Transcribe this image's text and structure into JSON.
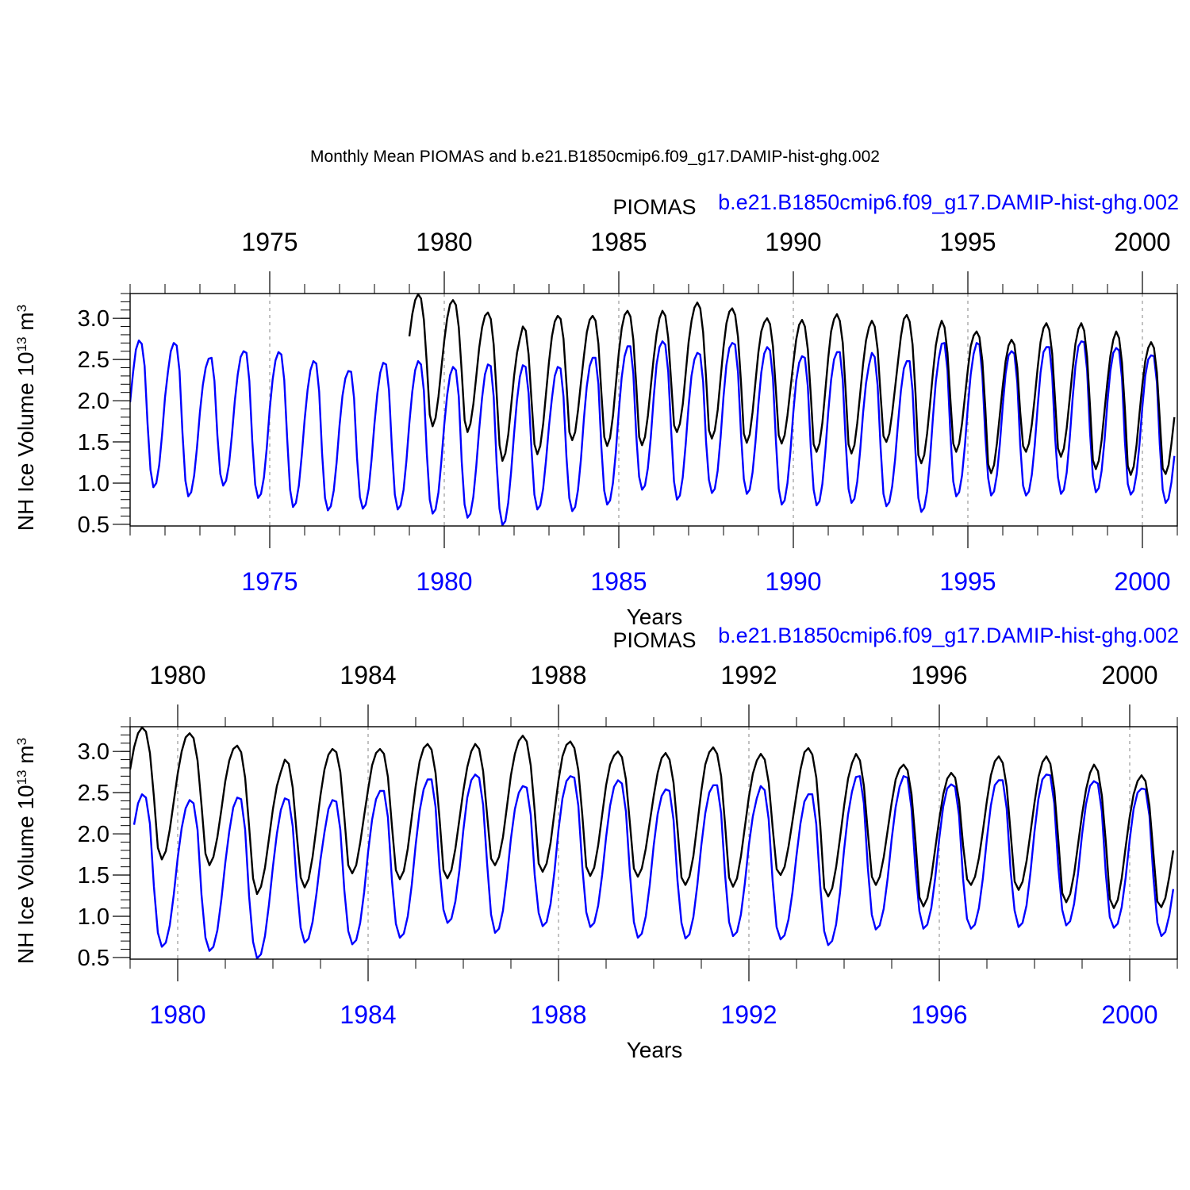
{
  "figure": {
    "title": "Monthly Mean PIOMAS and b.e21.B1850cmip6.f09_g17.DAMIP-hist-ghg.002"
  },
  "colors": {
    "piomas": "#000000",
    "model": "#0000ff",
    "frame": "#000000",
    "gridline": "#9a9a9a"
  },
  "chart_data": [
    {
      "type": "line",
      "ylabel": "NH Ice Volume 10",
      "ylabel_exponent": "13",
      "ylabel_unit": " m",
      "ylabel_unit_exponent": "3",
      "xlabel": "Years",
      "xlim": [
        1971.0,
        2001.0
      ],
      "ylim": [
        0.48,
        3.3
      ],
      "major_ticks": [
        1975,
        1980,
        1985,
        1990,
        1995,
        2000
      ],
      "major_tick_labels": [
        "1975",
        "1980",
        "1985",
        "1990",
        "1995",
        "2000"
      ],
      "yticks": [
        0.5,
        1.0,
        1.5,
        2.0,
        2.5,
        3.0
      ],
      "ytick_labels": [
        "0.5",
        "1.0",
        "1.5",
        "2.0",
        "2.5",
        "3.0"
      ],
      "grid": "vertical dashed at major ticks",
      "legend": {
        "left_label": "PIOMAS",
        "right_label": "b.e21.B1850cmip6.f09_g17.DAMIP-hist-ghg.002"
      },
      "series": [
        {
          "name": "PIOMAS",
          "x_start": 1979.0,
          "step": 0.08333,
          "values": [
            2.78,
            3.05,
            3.22,
            3.29,
            3.24,
            2.98,
            2.45,
            1.83,
            1.69,
            1.79,
            2.05,
            2.39,
            2.73,
            3.0,
            3.17,
            3.22,
            3.16,
            2.89,
            2.35,
            1.76,
            1.62,
            1.72,
            1.96,
            2.29,
            2.64,
            2.89,
            3.03,
            3.07,
            2.99,
            2.68,
            2.09,
            1.46,
            1.27,
            1.36,
            1.59,
            1.94,
            2.3,
            2.58,
            2.75,
            2.9,
            2.85,
            2.56,
            2.0,
            1.47,
            1.35,
            1.45,
            1.72,
            2.09,
            2.47,
            2.78,
            2.96,
            3.03,
            2.99,
            2.75,
            2.21,
            1.62,
            1.52,
            1.62,
            1.89,
            2.22,
            2.54,
            2.83,
            2.98,
            3.03,
            2.97,
            2.69,
            2.1,
            1.56,
            1.45,
            1.55,
            1.82,
            2.2,
            2.58,
            2.88,
            3.04,
            3.09,
            3.02,
            2.74,
            2.19,
            1.56,
            1.46,
            1.56,
            1.82,
            2.17,
            2.52,
            2.81,
            3.0,
            3.09,
            3.03,
            2.76,
            2.23,
            1.7,
            1.62,
            1.72,
            1.96,
            2.33,
            2.71,
            2.97,
            3.13,
            3.19,
            3.12,
            2.83,
            2.28,
            1.64,
            1.54,
            1.64,
            1.89,
            2.27,
            2.65,
            2.94,
            3.08,
            3.12,
            3.04,
            2.77,
            2.23,
            1.6,
            1.49,
            1.59,
            1.86,
            2.23,
            2.59,
            2.84,
            2.95,
            3.0,
            2.93,
            2.66,
            2.13,
            1.58,
            1.48,
            1.58,
            1.82,
            2.14,
            2.46,
            2.74,
            2.92,
            2.98,
            2.9,
            2.62,
            2.07,
            1.47,
            1.38,
            1.48,
            1.73,
            2.12,
            2.52,
            2.84,
            2.99,
            3.05,
            2.97,
            2.7,
            2.11,
            1.47,
            1.36,
            1.46,
            1.73,
            2.09,
            2.45,
            2.73,
            2.89,
            2.97,
            2.9,
            2.62,
            2.07,
            1.57,
            1.5,
            1.6,
            1.85,
            2.16,
            2.48,
            2.78,
            2.99,
            3.04,
            2.96,
            2.68,
            2.09,
            1.34,
            1.24,
            1.34,
            1.6,
            1.96,
            2.34,
            2.67,
            2.86,
            2.97,
            2.89,
            2.58,
            2.01,
            1.48,
            1.38,
            1.48,
            1.72,
            2.05,
            2.38,
            2.66,
            2.79,
            2.84,
            2.77,
            2.48,
            1.91,
            1.23,
            1.12,
            1.22,
            1.48,
            1.83,
            2.18,
            2.48,
            2.67,
            2.74,
            2.68,
            2.4,
            1.86,
            1.45,
            1.38,
            1.48,
            1.71,
            2.04,
            2.4,
            2.71,
            2.88,
            2.94,
            2.86,
            2.57,
            2.0,
            1.42,
            1.32,
            1.42,
            1.67,
            2.02,
            2.38,
            2.69,
            2.87,
            2.94,
            2.85,
            2.53,
            1.93,
            1.28,
            1.17,
            1.27,
            1.52,
            1.88,
            2.24,
            2.54,
            2.74,
            2.84,
            2.76,
            2.46,
            1.89,
            1.21,
            1.1,
            1.2,
            1.46,
            1.84,
            2.2,
            2.48,
            2.64,
            2.71,
            2.64,
            2.34,
            1.76,
            1.18,
            1.11,
            1.22,
            1.48,
            1.8
          ]
        },
        {
          "name": "b.e21.B1850cmip6.f09_g17.DAMIP-hist-ghg.002",
          "x_start": 1971.0,
          "step": 0.08333,
          "values": [
            1.98,
            2.34,
            2.62,
            2.73,
            2.69,
            2.42,
            1.72,
            1.16,
            0.95,
            1.0,
            1.22,
            1.59,
            2.04,
            2.35,
            2.6,
            2.7,
            2.67,
            2.36,
            1.61,
            1.03,
            0.84,
            0.89,
            1.09,
            1.43,
            1.86,
            2.19,
            2.4,
            2.51,
            2.52,
            2.24,
            1.58,
            1.11,
            0.97,
            1.03,
            1.23,
            1.58,
            2.0,
            2.32,
            2.53,
            2.6,
            2.58,
            2.24,
            1.51,
            0.98,
            0.82,
            0.87,
            1.07,
            1.43,
            1.9,
            2.26,
            2.49,
            2.59,
            2.56,
            2.25,
            1.54,
            0.92,
            0.71,
            0.76,
            0.97,
            1.33,
            1.77,
            2.13,
            2.37,
            2.48,
            2.45,
            2.11,
            1.36,
            0.82,
            0.67,
            0.72,
            0.91,
            1.25,
            1.7,
            2.06,
            2.27,
            2.36,
            2.35,
            2.03,
            1.31,
            0.83,
            0.69,
            0.74,
            0.93,
            1.28,
            1.72,
            2.09,
            2.34,
            2.46,
            2.44,
            2.13,
            1.43,
            0.86,
            0.68,
            0.73,
            0.92,
            1.27,
            1.73,
            2.11,
            2.37,
            2.48,
            2.44,
            2.12,
            1.36,
            0.8,
            0.63,
            0.68,
            0.89,
            1.26,
            1.71,
            2.07,
            2.31,
            2.41,
            2.37,
            2.05,
            1.26,
            0.74,
            0.58,
            0.63,
            0.83,
            1.2,
            1.65,
            2.03,
            2.32,
            2.44,
            2.42,
            2.05,
            1.24,
            0.69,
            0.49,
            0.54,
            0.76,
            1.14,
            1.6,
            2.0,
            2.29,
            2.43,
            2.41,
            2.09,
            1.4,
            0.86,
            0.68,
            0.73,
            0.93,
            1.28,
            1.69,
            2.02,
            2.3,
            2.41,
            2.39,
            2.05,
            1.32,
            0.82,
            0.66,
            0.71,
            0.92,
            1.29,
            1.78,
            2.17,
            2.42,
            2.52,
            2.52,
            2.2,
            1.44,
            0.91,
            0.74,
            0.79,
            1.0,
            1.38,
            1.87,
            2.28,
            2.54,
            2.66,
            2.66,
            2.33,
            1.58,
            1.08,
            0.92,
            0.97,
            1.18,
            1.55,
            2.04,
            2.44,
            2.65,
            2.72,
            2.68,
            2.35,
            1.64,
            1.02,
            0.8,
            0.85,
            1.07,
            1.47,
            1.94,
            2.3,
            2.5,
            2.58,
            2.56,
            2.23,
            1.5,
            1.04,
            0.88,
            0.93,
            1.15,
            1.55,
            2.05,
            2.43,
            2.64,
            2.7,
            2.68,
            2.34,
            1.6,
            1.05,
            0.87,
            0.92,
            1.13,
            1.5,
            1.96,
            2.34,
            2.57,
            2.65,
            2.61,
            2.27,
            1.52,
            0.93,
            0.74,
            0.79,
            1.0,
            1.38,
            1.86,
            2.24,
            2.46,
            2.54,
            2.52,
            2.17,
            1.43,
            0.92,
            0.73,
            0.78,
            0.99,
            1.38,
            1.86,
            2.25,
            2.5,
            2.59,
            2.59,
            2.25,
            1.5,
            0.93,
            0.76,
            0.81,
            1.02,
            1.4,
            1.86,
            2.21,
            2.43,
            2.58,
            2.53,
            2.18,
            1.43,
            0.87,
            0.72,
            0.77,
            0.96,
            1.29,
            1.73,
            2.12,
            2.39,
            2.48,
            2.48,
            2.12,
            1.37,
            0.82,
            0.65,
            0.7,
            0.9,
            1.29,
            1.8,
            2.23,
            2.51,
            2.69,
            2.7,
            2.37,
            1.59,
            1.02,
            0.84,
            0.89,
            1.09,
            1.46,
            1.93,
            2.32,
            2.57,
            2.7,
            2.68,
            2.31,
            1.57,
            1.06,
            0.85,
            0.9,
            1.1,
            1.47,
            1.94,
            2.33,
            2.55,
            2.6,
            2.57,
            2.22,
            1.46,
            0.97,
            0.85,
            0.9,
            1.1,
            1.46,
            1.93,
            2.34,
            2.59,
            2.65,
            2.65,
            2.31,
            1.55,
            1.07,
            0.87,
            0.92,
            1.13,
            1.53,
            2.02,
            2.42,
            2.66,
            2.72,
            2.71,
            2.37,
            1.61,
            1.08,
            0.89,
            0.94,
            1.15,
            1.52,
            1.99,
            2.36,
            2.58,
            2.64,
            2.61,
            2.27,
            1.51,
            0.99,
            0.86,
            0.91,
            1.11,
            1.47,
            1.92,
            2.3,
            2.5,
            2.55,
            2.54,
            2.22,
            1.47,
            0.92,
            0.76,
            0.81,
            1.01,
            1.33
          ]
        }
      ]
    },
    {
      "type": "line",
      "ylabel": "NH Ice Volume 10",
      "ylabel_exponent": "13",
      "ylabel_unit": " m",
      "ylabel_unit_exponent": "3",
      "xlabel": "Years",
      "xlim": [
        1979.0,
        2001.0
      ],
      "ylim": [
        0.48,
        3.3
      ],
      "major_ticks": [
        1980,
        1984,
        1988,
        1992,
        1996,
        2000
      ],
      "major_tick_labels": [
        "1980",
        "1984",
        "1988",
        "1992",
        "1996",
        "2000"
      ],
      "yticks": [
        0.5,
        1.0,
        1.5,
        2.0,
        2.5,
        3.0
      ],
      "ytick_labels": [
        "0.5",
        "1.0",
        "1.5",
        "2.0",
        "2.5",
        "3.0"
      ],
      "grid": "vertical dashed at major ticks",
      "legend": {
        "left_label": "PIOMAS",
        "right_label": "b.e21.B1850cmip6.f09_g17.DAMIP-hist-ghg.002"
      },
      "series": [
        {
          "name": "PIOMAS",
          "same_as_panel": 0,
          "series_index": 0
        },
        {
          "name": "b.e21.B1850cmip6.f09_g17.DAMIP-hist-ghg.002",
          "same_as_panel": 0,
          "series_index": 1,
          "from_x": 1979.0
        }
      ]
    }
  ]
}
